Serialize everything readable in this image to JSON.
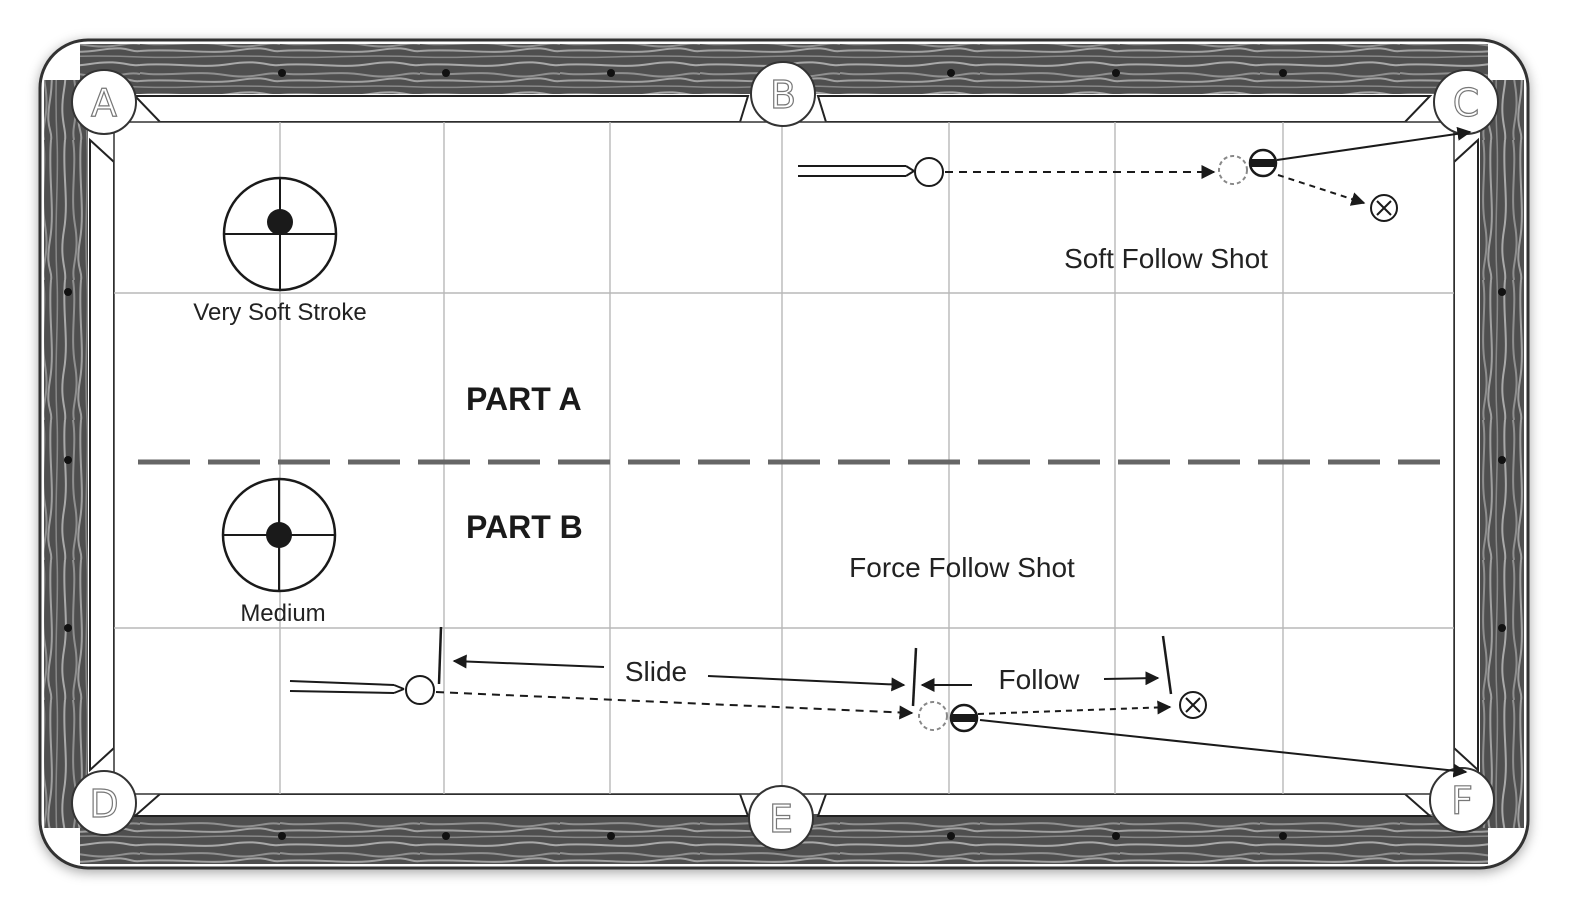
{
  "pockets": [
    "A",
    "B",
    "C",
    "D",
    "E",
    "F"
  ],
  "part_a": {
    "title": "PART A",
    "stroke_label": "Very Soft Stroke",
    "shot_label": "Soft Follow Shot"
  },
  "part_b": {
    "title": "PART B",
    "stroke_label": "Medium",
    "shot_label": "Force Follow Shot",
    "slide_label": "Slide",
    "follow_label": "Follow"
  },
  "colors": {
    "rail_wood": "#5a5a5a",
    "felt": "#ffffff",
    "grid_line": "#b8b8b8",
    "divider": "#666666",
    "ink": "#1a1a1a"
  },
  "icons": [
    "cue-ball-icon",
    "object-ball-icon",
    "ghost-ball-icon",
    "target-x-icon",
    "cue-tip-aim-icon",
    "cue-stick-icon"
  ]
}
